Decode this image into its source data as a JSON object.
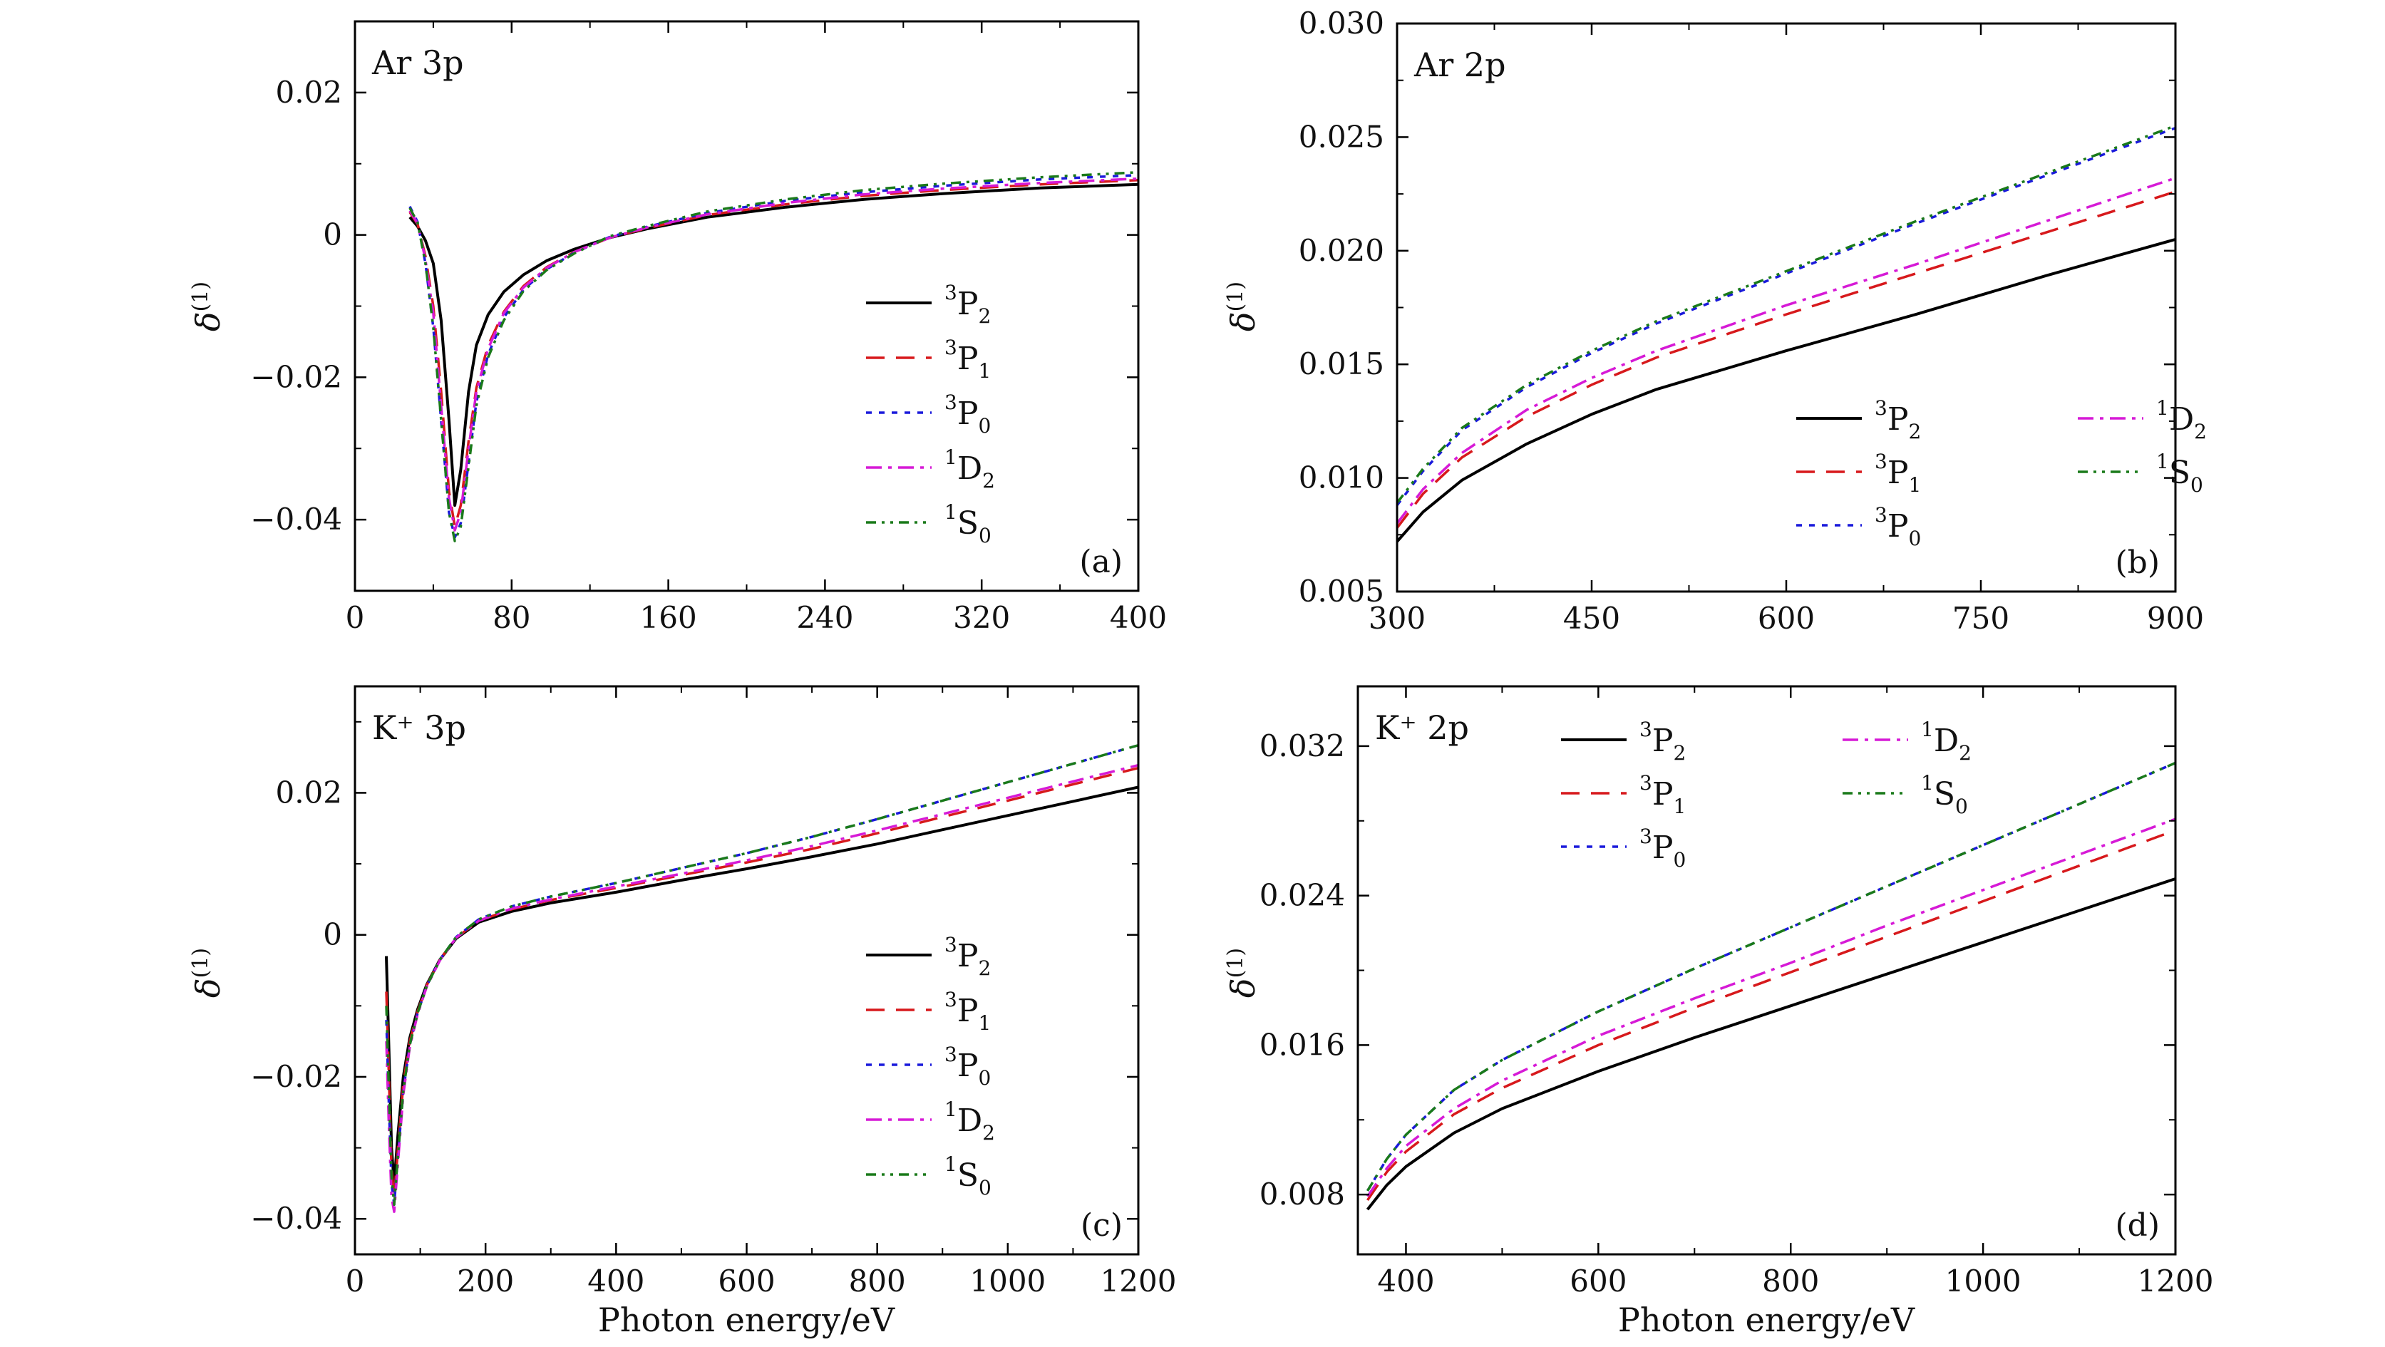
{
  "figure": {
    "xlabel_bottom": "Photon energy/eV",
    "ylabel": "δ",
    "ylabel_sup": "(1)"
  },
  "chart_data": [
    {
      "type": "line",
      "id": "a",
      "title": "Ar 3p",
      "tag": "(a)",
      "xlabel": "",
      "ylabel": "δ(1)",
      "xlim": [
        0,
        400
      ],
      "ylim": [
        -0.05,
        0.03
      ],
      "xticks": [
        0,
        80,
        160,
        240,
        320,
        400
      ],
      "xtick_labels": [
        "0",
        "80",
        "160",
        "240",
        "320",
        "400"
      ],
      "yticks": [
        -0.04,
        -0.02,
        0,
        0.02
      ],
      "ytick_labels": [
        "−0.04",
        "−0.02",
        "0",
        "0.02"
      ],
      "legend_position": "right",
      "series": [
        {
          "name": "³P₂",
          "sup": "3",
          "base": "P",
          "sub": "2",
          "x": [
            28,
            32,
            36,
            40,
            44,
            48,
            51,
            54,
            58,
            62,
            68,
            76,
            86,
            98,
            112,
            130,
            150,
            180,
            220,
            260,
            300,
            350,
            400
          ],
          "y": [
            0.0025,
            0.0012,
            -0.0008,
            -0.004,
            -0.012,
            -0.026,
            -0.038,
            -0.033,
            -0.022,
            -0.0155,
            -0.0112,
            -0.008,
            -0.0056,
            -0.0036,
            -0.002,
            -0.0004,
            0.0009,
            0.0025,
            0.0039,
            0.005,
            0.0058,
            0.0066,
            0.0071
          ]
        },
        {
          "name": "³P₁",
          "sup": "3",
          "base": "P",
          "sub": "1",
          "x": [
            28,
            32,
            36,
            40,
            44,
            48,
            51,
            54,
            58,
            62,
            68,
            76,
            86,
            98,
            112,
            130,
            150,
            180,
            220,
            260,
            300,
            350,
            400
          ],
          "y": [
            0.0032,
            0.0015,
            -0.003,
            -0.01,
            -0.022,
            -0.036,
            -0.041,
            -0.038,
            -0.029,
            -0.0215,
            -0.0155,
            -0.0108,
            -0.0072,
            -0.0045,
            -0.0024,
            -0.0004,
            0.001,
            0.0028,
            0.0043,
            0.0055,
            0.0063,
            0.0071,
            0.0077
          ]
        },
        {
          "name": "³P₀",
          "sup": "3",
          "base": "P",
          "sub": "0",
          "x": [
            28,
            32,
            36,
            40,
            44,
            48,
            51,
            54,
            58,
            62,
            68,
            76,
            86,
            98,
            112,
            130,
            150,
            180,
            220,
            260,
            300,
            350,
            400
          ],
          "y": [
            0.004,
            0.0018,
            -0.004,
            -0.013,
            -0.026,
            -0.039,
            -0.0425,
            -0.0405,
            -0.032,
            -0.0235,
            -0.0168,
            -0.0116,
            -0.0077,
            -0.0048,
            -0.0025,
            -0.0003,
            0.0012,
            0.0031,
            0.0048,
            0.006,
            0.0069,
            0.0078,
            0.0084
          ]
        },
        {
          "name": "¹D₂",
          "sup": "1",
          "base": "D",
          "sub": "2",
          "x": [
            28,
            32,
            36,
            40,
            44,
            48,
            51,
            54,
            58,
            62,
            68,
            76,
            86,
            98,
            112,
            130,
            150,
            180,
            220,
            260,
            300,
            350,
            400
          ],
          "y": [
            0.0034,
            0.0016,
            -0.0035,
            -0.011,
            -0.024,
            -0.037,
            -0.0415,
            -0.039,
            -0.03,
            -0.022,
            -0.016,
            -0.011,
            -0.0074,
            -0.0046,
            -0.0024,
            -0.0004,
            0.0011,
            0.0029,
            0.0045,
            0.0057,
            0.0065,
            0.0073,
            0.0079
          ]
        },
        {
          "name": "¹S₀",
          "sup": "1",
          "base": "S",
          "sub": "0",
          "x": [
            28,
            32,
            36,
            40,
            44,
            48,
            51,
            54,
            58,
            62,
            68,
            76,
            86,
            98,
            112,
            130,
            150,
            180,
            220,
            260,
            300,
            350,
            400
          ],
          "y": [
            0.0038,
            0.0017,
            -0.004,
            -0.013,
            -0.026,
            -0.039,
            -0.043,
            -0.041,
            -0.0325,
            -0.024,
            -0.0172,
            -0.012,
            -0.0079,
            -0.0049,
            -0.0026,
            -0.0002,
            0.0013,
            0.0033,
            0.005,
            0.0063,
            0.0072,
            0.0081,
            0.0088
          ]
        }
      ]
    },
    {
      "type": "line",
      "id": "b",
      "title": "Ar 2p",
      "tag": "(b)",
      "xlabel": "",
      "ylabel": "δ(1)",
      "xlim": [
        300,
        900
      ],
      "ylim": [
        0.005,
        0.03
      ],
      "xticks": [
        300,
        450,
        600,
        750,
        900
      ],
      "xtick_labels": [
        "300",
        "450",
        "600",
        "750",
        "900"
      ],
      "yticks": [
        0.005,
        0.01,
        0.015,
        0.02,
        0.025,
        0.03
      ],
      "ytick_labels": [
        "0.005",
        "0.010",
        "0.015",
        "0.020",
        "0.025",
        "0.030"
      ],
      "legend_position": "lower-right",
      "series": [
        {
          "name": "³P₂",
          "sup": "3",
          "base": "P",
          "sub": "2",
          "x": [
            300,
            320,
            350,
            400,
            450,
            500,
            600,
            700,
            800,
            900
          ],
          "y": [
            0.0072,
            0.0085,
            0.0099,
            0.0115,
            0.0128,
            0.0139,
            0.0156,
            0.0172,
            0.0189,
            0.0205
          ]
        },
        {
          "name": "³P₁",
          "sup": "3",
          "base": "P",
          "sub": "1",
          "x": [
            300,
            320,
            350,
            400,
            450,
            500,
            600,
            700,
            800,
            900
          ],
          "y": [
            0.0078,
            0.0093,
            0.0109,
            0.0127,
            0.0141,
            0.0153,
            0.0172,
            0.019,
            0.0208,
            0.0226
          ]
        },
        {
          "name": "³P₀",
          "sup": "3",
          "base": "P",
          "sub": "0",
          "x": [
            300,
            320,
            350,
            400,
            450,
            500,
            600,
            700,
            800,
            900
          ],
          "y": [
            0.0088,
            0.0103,
            0.0121,
            0.014,
            0.0155,
            0.0168,
            0.019,
            0.0212,
            0.0233,
            0.0254
          ]
        },
        {
          "name": "¹D₂",
          "sup": "1",
          "base": "D",
          "sub": "2",
          "x": [
            300,
            320,
            350,
            400,
            450,
            500,
            600,
            700,
            800,
            900
          ],
          "y": [
            0.008,
            0.0095,
            0.0111,
            0.013,
            0.0144,
            0.0156,
            0.0176,
            0.0194,
            0.0213,
            0.0232
          ]
        },
        {
          "name": "¹S₀",
          "sup": "1",
          "base": "S",
          "sub": "0",
          "x": [
            300,
            320,
            350,
            400,
            450,
            500,
            600,
            700,
            800,
            900
          ],
          "y": [
            0.0089,
            0.0104,
            0.0122,
            0.0141,
            0.0156,
            0.0169,
            0.0191,
            0.0213,
            0.0234,
            0.0255
          ]
        }
      ]
    },
    {
      "type": "line",
      "id": "c",
      "title": "K⁺ 3p",
      "tag": "(c)",
      "xlabel": "Photon energy/eV",
      "ylabel": "δ(1)",
      "xlim": [
        0,
        1200
      ],
      "ylim": [
        -0.045,
        0.035
      ],
      "xticks": [
        0,
        200,
        400,
        600,
        800,
        1000,
        1200
      ],
      "xtick_labels": [
        "0",
        "200",
        "400",
        "600",
        "800",
        "1000",
        "1200"
      ],
      "yticks": [
        -0.04,
        -0.02,
        0,
        0.02
      ],
      "ytick_labels": [
        "−0.04",
        "−0.02",
        "0",
        "0.02"
      ],
      "legend_position": "right",
      "series": [
        {
          "name": "³P₂",
          "sup": "3",
          "base": "P",
          "sub": "2",
          "x": [
            48,
            52,
            56,
            60,
            66,
            74,
            84,
            96,
            110,
            130,
            155,
            190,
            240,
            300,
            400,
            500,
            600,
            700,
            800,
            900,
            1000,
            1100,
            1200
          ],
          "y": [
            -0.003,
            -0.016,
            -0.03,
            -0.035,
            -0.028,
            -0.02,
            -0.0145,
            -0.0105,
            -0.007,
            -0.0035,
            -0.0005,
            0.0018,
            0.0033,
            0.0045,
            0.006,
            0.0077,
            0.0093,
            0.011,
            0.0128,
            0.0148,
            0.0168,
            0.0188,
            0.0208
          ]
        },
        {
          "name": "³P₁",
          "sup": "3",
          "base": "P",
          "sub": "1",
          "x": [
            48,
            52,
            56,
            60,
            66,
            74,
            84,
            96,
            110,
            130,
            155,
            190,
            240,
            300,
            400,
            500,
            600,
            700,
            800,
            900,
            1000,
            1100,
            1200
          ],
          "y": [
            -0.008,
            -0.02,
            -0.033,
            -0.037,
            -0.03,
            -0.021,
            -0.015,
            -0.0108,
            -0.0071,
            -0.0035,
            -0.0004,
            0.002,
            0.0036,
            0.0049,
            0.0066,
            0.0084,
            0.0102,
            0.0121,
            0.0143,
            0.0166,
            0.0189,
            0.0212,
            0.0235
          ]
        },
        {
          "name": "³P₀",
          "sup": "3",
          "base": "P",
          "sub": "0",
          "x": [
            48,
            52,
            56,
            60,
            66,
            74,
            84,
            96,
            110,
            130,
            155,
            190,
            240,
            300,
            400,
            500,
            600,
            700,
            800,
            900,
            1000,
            1100,
            1200
          ],
          "y": [
            -0.012,
            -0.024,
            -0.035,
            -0.038,
            -0.031,
            -0.022,
            -0.0155,
            -0.011,
            -0.0072,
            -0.0035,
            -0.0003,
            0.0022,
            0.004,
            0.0054,
            0.0073,
            0.0094,
            0.0115,
            0.0138,
            0.0163,
            0.0189,
            0.0215,
            0.0241,
            0.0267
          ]
        },
        {
          "name": "¹D₂",
          "sup": "1",
          "base": "D",
          "sub": "2",
          "x": [
            48,
            52,
            56,
            60,
            66,
            74,
            84,
            96,
            110,
            130,
            155,
            190,
            240,
            300,
            400,
            500,
            600,
            700,
            800,
            900,
            1000,
            1100,
            1200
          ],
          "y": [
            -0.015,
            -0.027,
            -0.037,
            -0.039,
            -0.032,
            -0.0225,
            -0.0158,
            -0.0112,
            -0.0073,
            -0.0036,
            -0.0004,
            0.002,
            0.0037,
            0.005,
            0.0068,
            0.0086,
            0.0105,
            0.0125,
            0.0147,
            0.017,
            0.0193,
            0.0216,
            0.0239
          ]
        },
        {
          "name": "¹S₀",
          "sup": "1",
          "base": "S",
          "sub": "0",
          "x": [
            48,
            52,
            56,
            60,
            66,
            74,
            84,
            96,
            110,
            130,
            155,
            190,
            240,
            300,
            400,
            500,
            600,
            700,
            800,
            900,
            1000,
            1100,
            1200
          ],
          "y": [
            -0.01,
            -0.022,
            -0.034,
            -0.038,
            -0.031,
            -0.022,
            -0.0155,
            -0.011,
            -0.0072,
            -0.0035,
            -0.0003,
            0.0022,
            0.004,
            0.0054,
            0.0073,
            0.0094,
            0.0115,
            0.0138,
            0.0163,
            0.0189,
            0.0215,
            0.0241,
            0.0267
          ]
        }
      ]
    },
    {
      "type": "line",
      "id": "d",
      "title": "K⁺ 2p",
      "tag": "(d)",
      "xlabel": "Photon energy/eV",
      "ylabel": "δ(1)",
      "xlim": [
        350,
        1200
      ],
      "ylim": [
        0.0048,
        0.0352
      ],
      "xticks": [
        400,
        600,
        800,
        1000,
        1200
      ],
      "xtick_labels": [
        "400",
        "600",
        "800",
        "1000",
        "1200"
      ],
      "yticks": [
        0.008,
        0.016,
        0.024,
        0.032
      ],
      "ytick_labels": [
        "0.008",
        "0.016",
        "0.024",
        "0.032"
      ],
      "legend_position": "upper-left",
      "series": [
        {
          "name": "³P₂",
          "sup": "3",
          "base": "P",
          "sub": "2",
          "x": [
            360,
            380,
            400,
            450,
            500,
            600,
            700,
            800,
            900,
            1000,
            1100,
            1200
          ],
          "y": [
            0.0072,
            0.0085,
            0.0095,
            0.0113,
            0.0126,
            0.0146,
            0.0164,
            0.0181,
            0.0198,
            0.0215,
            0.0232,
            0.0249
          ]
        },
        {
          "name": "³P₁",
          "sup": "3",
          "base": "P",
          "sub": "1",
          "x": [
            360,
            380,
            400,
            450,
            500,
            600,
            700,
            800,
            900,
            1000,
            1100,
            1200
          ],
          "y": [
            0.0077,
            0.0092,
            0.0103,
            0.0123,
            0.0137,
            0.016,
            0.018,
            0.0199,
            0.0218,
            0.0237,
            0.0256,
            0.0275
          ]
        },
        {
          "name": "³P₀",
          "sup": "3",
          "base": "P",
          "sub": "0",
          "x": [
            360,
            380,
            400,
            450,
            500,
            600,
            700,
            800,
            900,
            1000,
            1100,
            1200
          ],
          "y": [
            0.0082,
            0.0099,
            0.0112,
            0.0136,
            0.0152,
            0.0178,
            0.0201,
            0.0223,
            0.0245,
            0.0267,
            0.0289,
            0.0311
          ]
        },
        {
          "name": "¹D₂",
          "sup": "1",
          "base": "D",
          "sub": "2",
          "x": [
            360,
            380,
            400,
            450,
            500,
            600,
            700,
            800,
            900,
            1000,
            1100,
            1200
          ],
          "y": [
            0.0079,
            0.0094,
            0.0106,
            0.0126,
            0.0141,
            0.0165,
            0.0185,
            0.0204,
            0.0224,
            0.0243,
            0.0262,
            0.0281
          ]
        },
        {
          "name": "¹S₀",
          "sup": "1",
          "base": "S",
          "sub": "0",
          "x": [
            360,
            380,
            400,
            450,
            500,
            600,
            700,
            800,
            900,
            1000,
            1100,
            1200
          ],
          "y": [
            0.0082,
            0.0099,
            0.0112,
            0.0136,
            0.0152,
            0.0178,
            0.0201,
            0.0223,
            0.0245,
            0.0267,
            0.0289,
            0.0311
          ]
        }
      ]
    }
  ],
  "styles": {
    "series_colors": [
      "#000000",
      "#d7191c",
      "#1a1adb",
      "#d61ad6",
      "#1a7a1a"
    ],
    "series_names": [
      "3P2",
      "3P1",
      "3P0",
      "1D2",
      "1S0"
    ]
  }
}
